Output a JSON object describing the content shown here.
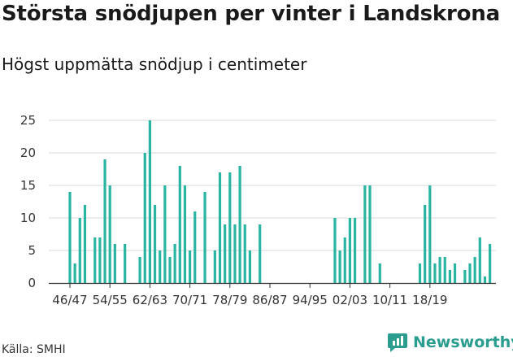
{
  "header": {
    "title": "Största snödjupen per vinter i Landskrona",
    "subtitle": "Högst uppmätta snödjup i centimeter"
  },
  "footer": {
    "source": "Källa: SMHI",
    "brand": "Newsworthy"
  },
  "colors": {
    "bar": "#2ab5a2",
    "grid": "#d9d9d9",
    "axis": "#333333",
    "brand": "#2a9d8f"
  },
  "chart_data": {
    "type": "bar",
    "title": "Största snödjupen per vinter i Landskrona",
    "subtitle": "Högst uppmätta snödjup i centimeter",
    "xlabel": "",
    "ylabel": "",
    "ylim": [
      0,
      25
    ],
    "yticks": [
      0,
      5,
      10,
      15,
      20,
      25
    ],
    "grid": true,
    "first_winter_start_year": 1946,
    "tick_labels": [
      "46/47",
      "54/55",
      "62/63",
      "70/71",
      "78/79",
      "86/87",
      "94/95",
      "02/03",
      "10/11",
      "18/19"
    ],
    "tick_every_n_bars": 8,
    "values": [
      14,
      3,
      10,
      12,
      0,
      7,
      7,
      19,
      15,
      6,
      0,
      6,
      0,
      0,
      4,
      20,
      25,
      12,
      5,
      15,
      4,
      6,
      18,
      15,
      5,
      11,
      0,
      14,
      0,
      5,
      17,
      9,
      17,
      9,
      18,
      9,
      5,
      0,
      9,
      0,
      0,
      0,
      0,
      0,
      0,
      0,
      0,
      0,
      0,
      0,
      0,
      0,
      0,
      10,
      5,
      7,
      10,
      10,
      0,
      15,
      15,
      0,
      3,
      0,
      0,
      0,
      0,
      0,
      0,
      0,
      3,
      12,
      15,
      3,
      4,
      4,
      2,
      3,
      0,
      2,
      3,
      4,
      7,
      1,
      6
    ]
  }
}
